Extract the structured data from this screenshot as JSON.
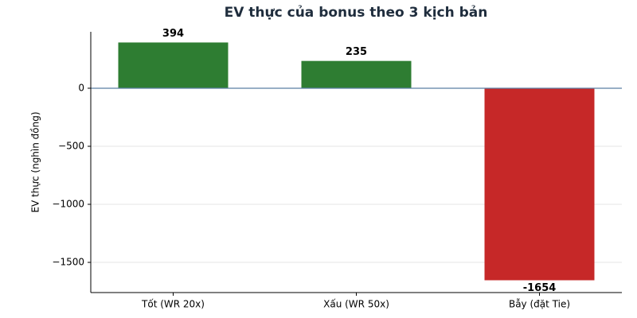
{
  "chart_data": {
    "type": "bar",
    "title": "EV thực của bonus theo 3 kịch bản",
    "y_label": "EV thực (nghìn đồng)",
    "categories": [
      "Tốt (WR 20x)",
      "Xấu (WR 50x)",
      "Bẫy (đặt Tie)"
    ],
    "values": [
      394,
      235,
      -1654
    ],
    "colors": [
      "#2e7d32",
      "#2e7d32",
      "#c62828"
    ],
    "ylim": [
      -1760,
      486
    ],
    "yticks": [
      0,
      {
        "value": -500,
        "label": "−500"
      },
      {
        "value": -1000,
        "label": "−1000"
      },
      {
        "value": -1500,
        "label": "−1500"
      }
    ],
    "grid": true
  }
}
